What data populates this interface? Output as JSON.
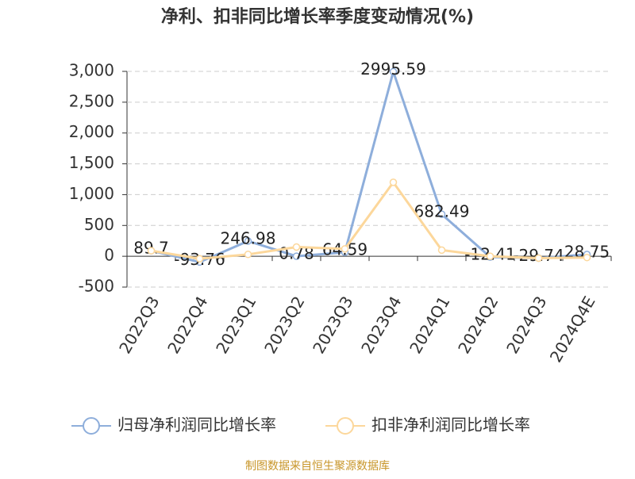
{
  "chart_data": {
    "type": "line",
    "title": "净利、扣非同比增长率季度变动情况(%)",
    "categories": [
      "2022Q3",
      "2022Q4",
      "2023Q1",
      "2023Q2",
      "2023Q3",
      "2023Q4",
      "2024Q1",
      "2024Q2",
      "2024Q3",
      "2024Q4E"
    ],
    "series": [
      {
        "name": "归母净利润同比增长率",
        "color": "#8eaedb",
        "values": [
          89.7,
          -93.76,
          246.98,
          0.78,
          64.59,
          2995.59,
          682.49,
          -12.41,
          -29.74,
          28.75
        ]
      },
      {
        "name": "扣非净利润同比增长率",
        "color": "#fcd79b",
        "values": [
          90,
          -40,
          30,
          150,
          120,
          1200,
          100,
          0,
          -30,
          -20
        ]
      }
    ],
    "ylim": [
      -500,
      3000
    ],
    "yticks": [
      -500,
      0,
      500,
      {
        "value": 1000,
        "label": "1,000"
      },
      {
        "value": 1500,
        "label": "1,500"
      },
      {
        "value": 2000,
        "label": "2,000"
      },
      {
        "value": 2500,
        "label": "2,500"
      },
      {
        "value": 3000,
        "label": "3,000"
      }
    ],
    "grid": true,
    "source": "制图数据来自恒生聚源数据库"
  }
}
